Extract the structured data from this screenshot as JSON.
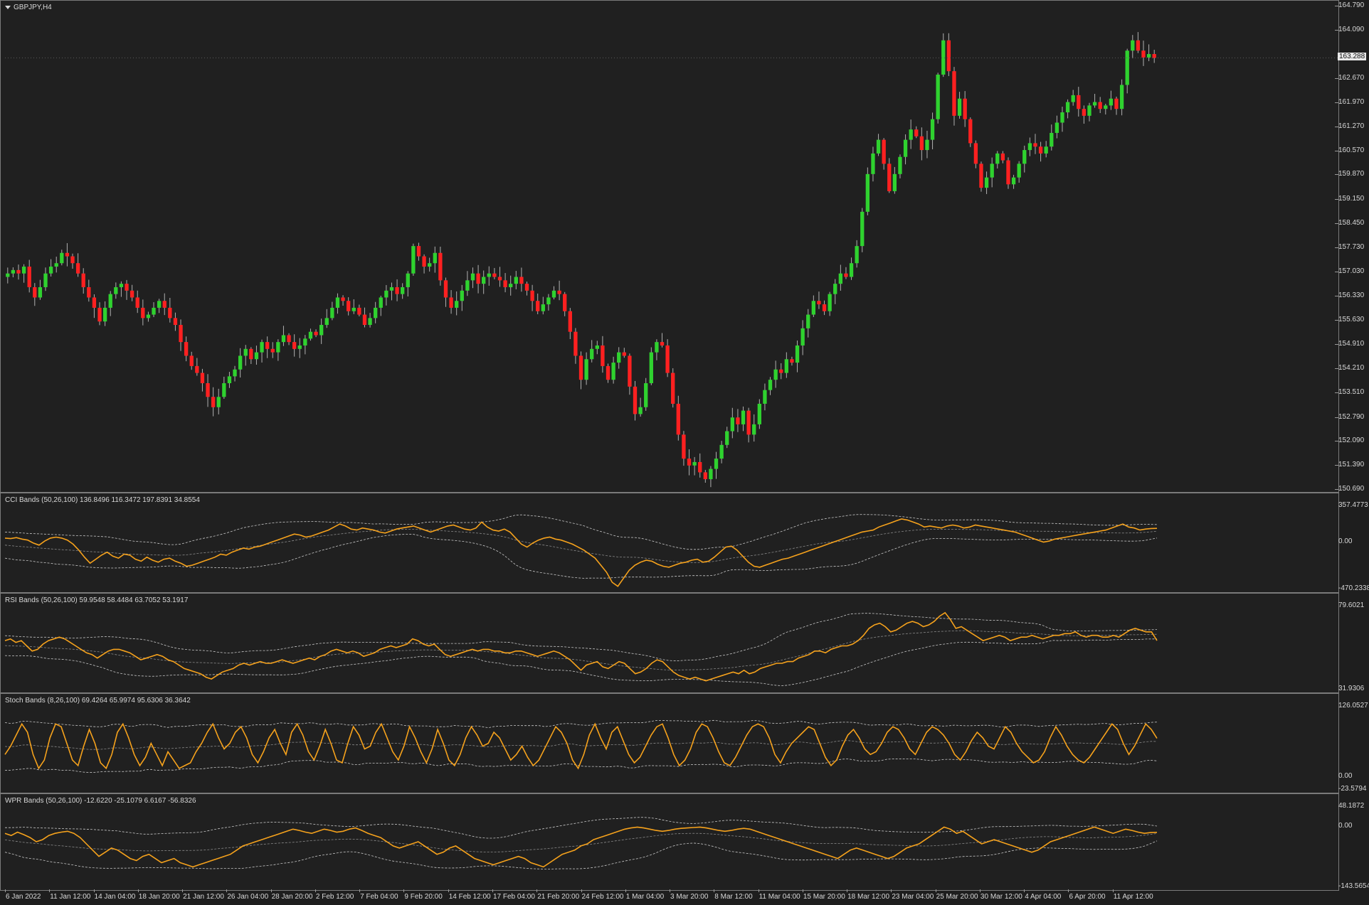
{
  "colors": {
    "bg": "#1e1e1e",
    "panel": "#202020",
    "up": "#2fd22f",
    "down": "#ff2020",
    "wick": "#b0b0b0",
    "osc": "#f6a21c",
    "band": "#c8c8c8",
    "mid": "#8a8a8a",
    "text": "#d8d8d8"
  },
  "chart": {
    "title": "GBPJPY,H4",
    "current_price": "163.288",
    "current_price_value": 163.288
  },
  "price_axis": {
    "labels": [
      "164.790",
      "164.090",
      "162.670",
      "161.970",
      "161.270",
      "160.570",
      "159.870",
      "159.150",
      "158.450",
      "157.730",
      "157.030",
      "156.330",
      "155.630",
      "154.910",
      "154.210",
      "153.510",
      "152.790",
      "152.090",
      "151.390",
      "150.690"
    ],
    "min": 150.69,
    "max": 164.79
  },
  "candles": [
    157.0,
    157.1,
    157.0,
    157.2,
    156.6,
    156.3,
    156.6,
    157.0,
    157.2,
    157.3,
    157.6,
    157.5,
    157.3,
    157.0,
    156.6,
    156.3,
    156.0,
    155.6,
    156.0,
    156.4,
    156.6,
    156.7,
    156.5,
    156.3,
    156.0,
    155.7,
    155.8,
    156.0,
    156.2,
    156.0,
    155.7,
    155.5,
    155.0,
    154.6,
    154.3,
    154.1,
    153.8,
    153.4,
    153.1,
    153.4,
    153.8,
    154.0,
    154.2,
    154.6,
    154.8,
    154.5,
    154.7,
    155.0,
    154.8,
    154.7,
    155.0,
    155.2,
    155.0,
    154.8,
    154.9,
    155.1,
    155.3,
    155.2,
    155.5,
    155.7,
    156.0,
    156.3,
    156.2,
    155.9,
    156.0,
    155.8,
    155.5,
    155.7,
    156.0,
    156.3,
    156.5,
    156.6,
    156.4,
    156.6,
    157.0,
    157.8,
    157.5,
    157.2,
    157.3,
    157.6,
    156.8,
    156.3,
    156.0,
    156.2,
    156.5,
    156.8,
    157.0,
    156.7,
    156.9,
    157.0,
    156.9,
    156.8,
    156.6,
    156.7,
    156.9,
    156.7,
    156.5,
    156.2,
    155.9,
    156.1,
    156.3,
    156.5,
    156.4,
    155.9,
    155.3,
    154.6,
    153.9,
    154.5,
    154.8,
    154.9,
    154.3,
    153.9,
    154.4,
    154.7,
    154.6,
    153.7,
    152.9,
    153.1,
    153.8,
    154.7,
    155.0,
    154.9,
    154.1,
    153.2,
    152.3,
    151.6,
    151.4,
    151.5,
    151.2,
    151.0,
    151.3,
    151.6,
    152.0,
    152.4,
    152.8,
    152.6,
    153.0,
    152.3,
    152.6,
    153.2,
    153.6,
    153.9,
    154.2,
    154.1,
    154.5,
    154.4,
    154.9,
    155.4,
    155.8,
    156.2,
    156.1,
    155.9,
    156.4,
    156.7,
    157.0,
    156.9,
    157.3,
    157.8,
    158.8,
    159.9,
    160.5,
    160.9,
    160.2,
    159.4,
    159.9,
    160.4,
    160.9,
    161.2,
    161.0,
    160.6,
    160.9,
    161.5,
    162.8,
    163.8,
    162.9,
    161.6,
    162.1,
    161.5,
    160.8,
    160.2,
    159.5,
    159.8,
    160.2,
    160.5,
    160.3,
    159.6,
    159.8,
    160.2,
    160.6,
    160.8,
    160.7,
    160.5,
    160.7,
    161.1,
    161.4,
    161.7,
    162.0,
    162.2,
    161.8,
    161.6,
    161.9,
    162.0,
    161.8,
    161.9,
    162.1,
    161.8,
    162.5,
    163.5,
    163.8,
    163.5,
    163.3,
    163.4,
    163.288
  ],
  "oscillators": [
    {
      "label": "CCI Bands (50,26,100) 136.8496 116.3472 197.8391 34.8554",
      "axis": [
        "357.4773",
        "0.00",
        "-470.2338"
      ],
      "min": -470.2338,
      "max": 357.4773,
      "data": [
        40,
        35,
        45,
        30,
        20,
        -10,
        -30,
        10,
        40,
        50,
        40,
        20,
        -20,
        -80,
        -150,
        -210,
        -170,
        -130,
        -100,
        -140,
        -160,
        -120,
        -130,
        -170,
        -190,
        -150,
        -180,
        -200,
        -170,
        -160,
        -190,
        -210,
        -240,
        -230,
        -210,
        -190,
        -170,
        -150,
        -120,
        -130,
        -100,
        -80,
        -60,
        -70,
        -50,
        -40,
        -20,
        0,
        20,
        40,
        60,
        80,
        70,
        50,
        60,
        80,
        100,
        120,
        150,
        180,
        160,
        130,
        120,
        140,
        130,
        120,
        100,
        90,
        110,
        130,
        140,
        150,
        160,
        140,
        120,
        100,
        120,
        140,
        160,
        170,
        150,
        130,
        120,
        140,
        200,
        150,
        120,
        110,
        130,
        100,
        40,
        -20,
        -50,
        -10,
        20,
        40,
        50,
        30,
        20,
        0,
        -20,
        -50,
        -80,
        -120,
        -160,
        -230,
        -300,
        -400,
        -440,
        -360,
        -280,
        -230,
        -200,
        -180,
        -190,
        -220,
        -240,
        -250,
        -230,
        -210,
        -200,
        -180,
        -170,
        -200,
        -190,
        -150,
        -100,
        -50,
        -40,
        -80,
        -140,
        -200,
        -240,
        -250,
        -230,
        -210,
        -190,
        -170,
        -160,
        -140,
        -120,
        -100,
        -80,
        -60,
        -40,
        -20,
        0,
        20,
        40,
        60,
        80,
        100,
        110,
        120,
        150,
        170,
        190,
        210,
        230,
        220,
        200,
        180,
        150,
        160,
        150,
        140,
        160,
        170,
        160,
        140,
        150,
        170,
        160,
        150,
        140,
        130,
        120,
        110,
        100,
        80,
        60,
        40,
        20,
        0,
        10,
        30,
        40,
        50,
        60,
        70,
        80,
        90,
        100,
        110,
        120,
        140,
        160,
        180,
        150,
        140,
        120,
        130,
        135,
        137
      ]
    },
    {
      "label": "RSI Bands (50,26,100) 59.9548 58.4484 63.7052 53.1917",
      "axis": [
        "79.6021",
        "31.9306"
      ],
      "min": 31.9306,
      "max": 79.6021,
      "data": [
        60,
        61,
        59,
        60,
        57,
        54,
        55,
        58,
        60,
        61,
        62,
        61,
        59,
        57,
        55,
        53,
        52,
        50,
        52,
        54,
        55,
        55,
        54,
        53,
        51,
        49,
        50,
        51,
        52,
        51,
        49,
        48,
        46,
        44,
        43,
        42,
        41,
        39,
        38,
        40,
        42,
        43,
        44,
        46,
        47,
        46,
        47,
        48,
        47,
        47,
        48,
        49,
        48,
        47,
        48,
        49,
        50,
        49,
        51,
        52,
        54,
        55,
        54,
        53,
        54,
        53,
        51,
        52,
        53,
        55,
        56,
        57,
        56,
        57,
        58,
        61,
        60,
        58,
        57,
        58,
        55,
        52,
        51,
        52,
        53,
        54,
        55,
        54,
        55,
        55,
        54,
        54,
        53,
        53,
        54,
        54,
        53,
        52,
        51,
        52,
        53,
        54,
        53,
        51,
        49,
        46,
        43,
        46,
        47,
        48,
        45,
        44,
        46,
        48,
        47,
        44,
        41,
        42,
        44,
        47,
        49,
        48,
        45,
        42,
        40,
        39,
        38,
        39,
        38,
        37,
        38,
        39,
        40,
        41,
        42,
        41,
        43,
        41,
        42,
        44,
        45,
        46,
        47,
        47,
        48,
        48,
        50,
        51,
        52,
        54,
        54,
        53,
        55,
        56,
        57,
        57,
        58,
        60,
        63,
        67,
        69,
        70,
        68,
        65,
        66,
        68,
        70,
        71,
        70,
        68,
        69,
        71,
        74,
        76,
        72,
        67,
        68,
        66,
        64,
        62,
        60,
        61,
        62,
        63,
        62,
        60,
        61,
        62,
        62,
        63,
        62,
        61,
        62,
        63,
        63,
        64,
        64,
        65,
        63,
        62,
        63,
        63,
        62,
        62,
        63,
        62,
        64,
        66,
        67,
        66,
        65,
        65,
        60
      ]
    },
    {
      "label": "Stoch Bands (8,26,100) 69.4264 65.9974 95.6306 36.3642",
      "axis": [
        "126.0527",
        "0.00",
        "-23.5794"
      ],
      "min": -23.5794,
      "max": 126.0527,
      "data": [
        40,
        55,
        75,
        95,
        80,
        40,
        15,
        30,
        70,
        95,
        90,
        60,
        30,
        20,
        55,
        85,
        60,
        25,
        15,
        40,
        80,
        95,
        70,
        40,
        20,
        35,
        60,
        40,
        20,
        45,
        30,
        15,
        20,
        25,
        45,
        60,
        80,
        95,
        70,
        50,
        60,
        80,
        90,
        70,
        40,
        25,
        45,
        70,
        85,
        60,
        40,
        80,
        95,
        75,
        45,
        30,
        55,
        85,
        60,
        30,
        25,
        60,
        90,
        75,
        50,
        55,
        80,
        95,
        70,
        45,
        30,
        55,
        90,
        70,
        45,
        25,
        50,
        85,
        60,
        30,
        20,
        40,
        70,
        90,
        75,
        55,
        60,
        80,
        70,
        50,
        30,
        40,
        55,
        35,
        20,
        30,
        50,
        70,
        90,
        80,
        60,
        30,
        15,
        40,
        75,
        95,
        70,
        50,
        80,
        90,
        65,
        40,
        25,
        35,
        55,
        75,
        90,
        95,
        70,
        40,
        20,
        30,
        50,
        80,
        95,
        90,
        70,
        45,
        25,
        20,
        35,
        55,
        75,
        90,
        95,
        90,
        70,
        40,
        25,
        45,
        60,
        70,
        80,
        90,
        85,
        60,
        35,
        20,
        30,
        55,
        75,
        85,
        70,
        50,
        40,
        45,
        60,
        80,
        90,
        85,
        70,
        50,
        40,
        60,
        80,
        90,
        85,
        75,
        60,
        40,
        30,
        45,
        65,
        80,
        70,
        55,
        50,
        70,
        90,
        80,
        60,
        45,
        35,
        25,
        30,
        45,
        70,
        90,
        75,
        55,
        40,
        30,
        25,
        35,
        50,
        65,
        80,
        95,
        85,
        60,
        40,
        55,
        75,
        95,
        85,
        69
      ]
    },
    {
      "label": "WPR Bands (50,26,100) -12.6220 -25.1079 6.6167 -56.8326",
      "axis": [
        "48.1872",
        "0.00",
        "-143.5654"
      ],
      "min": -143.5654,
      "max": 48.1872,
      "data": [
        -15,
        -20,
        -12,
        -18,
        -25,
        -35,
        -30,
        -20,
        -15,
        -12,
        -10,
        -15,
        -25,
        -40,
        -55,
        -70,
        -60,
        -50,
        -55,
        -65,
        -75,
        -80,
        -70,
        -65,
        -75,
        -85,
        -80,
        -75,
        -85,
        -90,
        -95,
        -90,
        -85,
        -80,
        -75,
        -70,
        -65,
        -55,
        -45,
        -40,
        -35,
        -30,
        -25,
        -20,
        -15,
        -10,
        -5,
        -8,
        -12,
        -15,
        -10,
        -5,
        -8,
        -12,
        -10,
        -5,
        -2,
        -8,
        -15,
        -20,
        -25,
        -35,
        -45,
        -50,
        -45,
        -40,
        -35,
        -45,
        -55,
        -65,
        -60,
        -50,
        -45,
        -55,
        -65,
        -75,
        -80,
        -85,
        -90,
        -85,
        -80,
        -75,
        -70,
        -75,
        -85,
        -90,
        -95,
        -85,
        -75,
        -65,
        -60,
        -55,
        -45,
        -40,
        -30,
        -25,
        -20,
        -15,
        -10,
        -5,
        -2,
        0,
        -2,
        -5,
        -8,
        -10,
        -8,
        -5,
        -3,
        -2,
        -1,
        0,
        -2,
        -5,
        -8,
        -10,
        -8,
        -5,
        -3,
        -5,
        -10,
        -15,
        -20,
        -25,
        -30,
        -35,
        -40,
        -45,
        -50,
        -55,
        -60,
        -65,
        -70,
        -75,
        -65,
        -55,
        -50,
        -55,
        -60,
        -65,
        -70,
        -75,
        -70,
        -60,
        -50,
        -45,
        -40,
        -30,
        -20,
        -10,
        0,
        -5,
        -15,
        -10,
        -20,
        -30,
        -40,
        -35,
        -30,
        -35,
        -40,
        -45,
        -50,
        -55,
        -60,
        -55,
        -45,
        -35,
        -30,
        -25,
        -20,
        -15,
        -10,
        -5,
        0,
        -5,
        -10,
        -15,
        -10,
        -5,
        -8,
        -12,
        -15,
        -13,
        -12.6
      ]
    }
  ],
  "time_labels": [
    "6 Jan 2022",
    "11 Jan 12:00",
    "14 Jan 04:00",
    "18 Jan 20:00",
    "21 Jan 12:00",
    "26 Jan 04:00",
    "28 Jan 20:00",
    "2 Feb 12:00",
    "7 Feb 04:00",
    "9 Feb 20:00",
    "14 Feb 12:00",
    "17 Feb 04:00",
    "21 Feb 20:00",
    "24 Feb 12:00",
    "1 Mar 04:00",
    "3 Mar 20:00",
    "8 Mar 12:00",
    "11 Mar 04:00",
    "15 Mar 20:00",
    "18 Mar 12:00",
    "23 Mar 04:00",
    "25 Mar 20:00",
    "30 Mar 12:00",
    "4 Apr 04:00",
    "6 Apr 20:00",
    "11 Apr 12:00"
  ]
}
